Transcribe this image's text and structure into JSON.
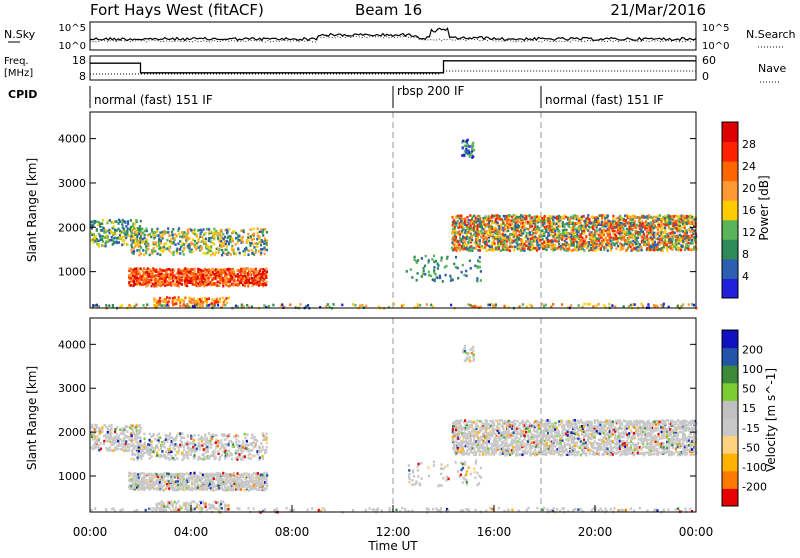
{
  "header": {
    "station": "Fort Hays West (fitACF)",
    "beam": "Beam 16",
    "date": "21/Mar/2016"
  },
  "colors": {
    "power_scale": [
      "#1f1fdc",
      "#2d5fb0",
      "#2e8b57",
      "#5ab45a",
      "#ffcc00",
      "#ff9933",
      "#ff6600",
      "#ff2200",
      "#dd0000"
    ],
    "velocity_scale": [
      "#e60000",
      "#ff7a00",
      "#ffb300",
      "#ffd27f",
      "#c8c8c8",
      "#c0c0c0",
      "#7ccd32",
      "#3a8a3a",
      "#2255aa",
      "#1010c0"
    ]
  },
  "chart_data": [
    {
      "type": "line",
      "name": "top-panel",
      "left_label": [
        "N.Sky",
        "10^5",
        "10^0"
      ],
      "right_label": [
        "N.Search",
        "10^5",
        "10^0"
      ],
      "ylim_log": [
        0,
        5
      ]
    },
    {
      "type": "line",
      "name": "freq-panel",
      "left_label": [
        "Freq.",
        "[MHz]"
      ],
      "left_ticks": [
        "18",
        "8"
      ],
      "right_label": "Nave",
      "right_ticks": [
        "60",
        "0"
      ],
      "cpid_label": "CPID",
      "series": [
        {
          "values_time_freq": [
            [
              0,
              15
            ],
            [
              2,
              15
            ],
            [
              2,
              11
            ],
            [
              14,
              11
            ],
            [
              14,
              16
            ],
            [
              24,
              16
            ]
          ]
        }
      ]
    },
    {
      "type": "table",
      "name": "cpid-bar",
      "segments": [
        {
          "start": 0,
          "end": 12,
          "label": "normal (fast) 151 IF"
        },
        {
          "start": 12,
          "end": 18,
          "label": "rbsp 200 IF"
        },
        {
          "start": 18,
          "end": 24,
          "label": "normal (fast) 151 IF"
        }
      ]
    },
    {
      "type": "heatmap",
      "name": "power",
      "xlabel": "",
      "ylabel": "Slant Range [km]",
      "yticks": [
        1000,
        2000,
        3000,
        4000
      ],
      "ylim": [
        180,
        4600
      ],
      "xlim": [
        0,
        24
      ],
      "colorbar_label": "Power [dB]",
      "colorbar_ticks": [
        "4",
        "8",
        "12",
        "16",
        "20",
        "24",
        "28"
      ]
    },
    {
      "type": "heatmap",
      "name": "velocity",
      "xlabel": "Time UT",
      "ylabel": "Slant Range [km]",
      "yticks": [
        1000,
        2000,
        3000,
        4000
      ],
      "ylim": [
        180,
        4600
      ],
      "xlim": [
        0,
        24
      ],
      "xticks": [
        "00:00",
        "04:00",
        "08:00",
        "12:00",
        "16:00",
        "20:00",
        "00:00"
      ],
      "colorbar_label": "Velocity [m s^-1]",
      "colorbar_ticks": [
        "200",
        "100",
        "50",
        "15",
        "-15",
        "-50",
        "-100",
        "-200"
      ]
    }
  ]
}
